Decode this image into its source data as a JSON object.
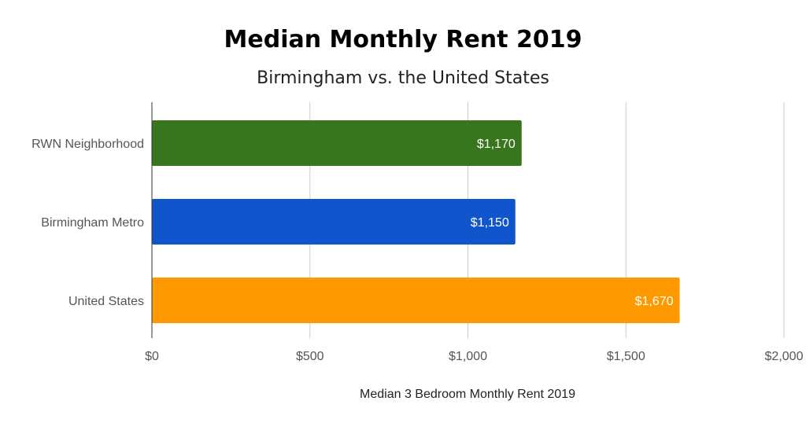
{
  "chart_data": {
    "type": "bar",
    "orientation": "horizontal",
    "title": "Median Monthly Rent 2019",
    "subtitle": "Birmingham vs. the United States",
    "xlabel": "Median 3 Bedroom Monthly Rent 2019",
    "ylabel": "",
    "categories": [
      "RWN Neighborhood",
      "Birmingham Metro",
      "United States"
    ],
    "values": [
      1170,
      1150,
      1670
    ],
    "data_labels": [
      "$1,170",
      "$1,150",
      "$1,670"
    ],
    "colors": [
      "#38761d",
      "#1155cc",
      "#ff9900"
    ],
    "xlim": [
      0,
      2000
    ],
    "ticks": [
      0,
      500,
      1000,
      1500,
      2000
    ],
    "tick_labels": [
      "$0",
      "$500",
      "$1,000",
      "$1,500",
      "$2,000"
    ],
    "grid": true,
    "legend": "none"
  }
}
